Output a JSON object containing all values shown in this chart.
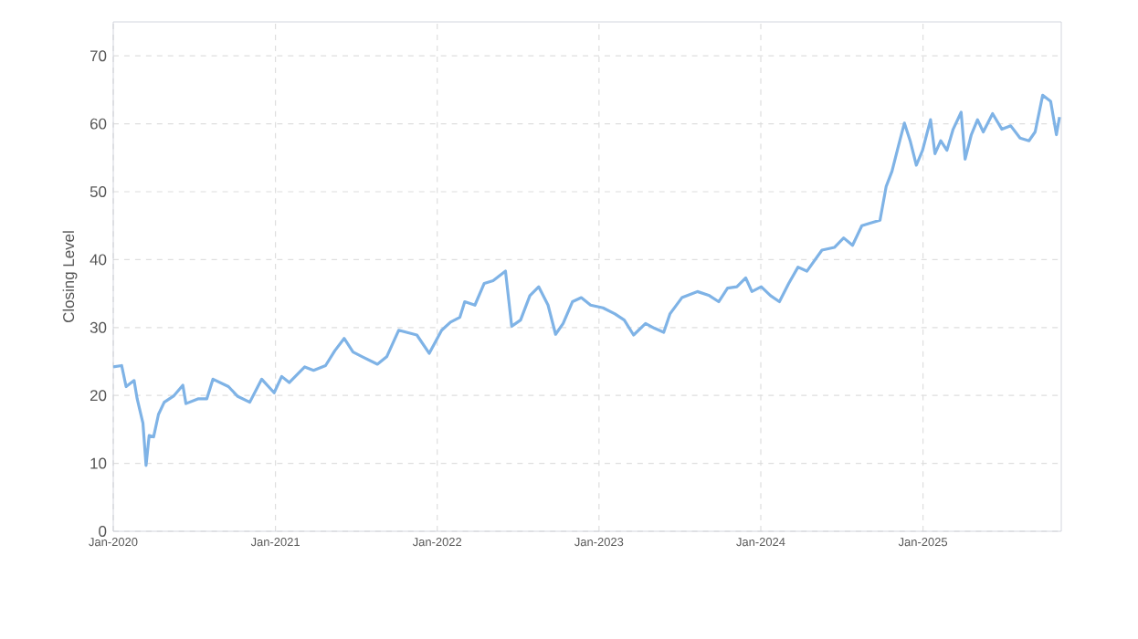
{
  "chart_data": {
    "type": "line",
    "ylabel": "Closing Level",
    "grid": true,
    "xlim": [
      "2020-01-01",
      "2025-11-09"
    ],
    "ylim": [
      0,
      75
    ],
    "xticks": [
      {
        "value": "2020-01-01",
        "label": "Jan-2020"
      },
      {
        "value": "2021-01-01",
        "label": "Jan-2021"
      },
      {
        "value": "2022-01-01",
        "label": "Jan-2022"
      },
      {
        "value": "2023-01-01",
        "label": "Jan-2023"
      },
      {
        "value": "2024-01-01",
        "label": "Jan-2024"
      },
      {
        "value": "2025-01-01",
        "label": "Jan-2025"
      }
    ],
    "yticks": [
      0,
      10,
      20,
      30,
      40,
      50,
      60,
      70
    ],
    "series": [
      {
        "color": "#7fb3e6",
        "x": [
          "2020-01-01",
          "2020-01-20",
          "2020-01-30",
          "2020-02-17",
          "2020-02-24",
          "2020-03-08",
          "2020-03-15",
          "2020-03-22",
          "2020-04-01",
          "2020-04-12",
          "2020-04-25",
          "2020-05-16",
          "2020-06-06",
          "2020-06-13",
          "2020-07-10",
          "2020-07-30",
          "2020-08-13",
          "2020-09-17",
          "2020-10-07",
          "2020-11-04",
          "2020-12-01",
          "2020-12-29",
          "2021-01-15",
          "2021-02-01",
          "2021-03-08",
          "2021-03-28",
          "2021-04-24",
          "2021-05-15",
          "2021-06-05",
          "2021-06-25",
          "2021-07-16",
          "2021-08-19",
          "2021-09-09",
          "2021-10-06",
          "2021-11-16",
          "2021-12-14",
          "2022-01-11",
          "2022-01-31",
          "2022-02-21",
          "2022-03-04",
          "2022-03-27",
          "2022-04-17",
          "2022-05-07",
          "2022-06-04",
          "2022-06-18",
          "2022-07-08",
          "2022-07-29",
          "2022-08-18",
          "2022-09-08",
          "2022-09-25",
          "2022-10-12",
          "2022-11-02",
          "2022-11-22",
          "2022-12-13",
          "2023-01-10",
          "2023-02-06",
          "2023-02-27",
          "2023-03-20",
          "2023-04-16",
          "2023-05-06",
          "2023-05-27",
          "2023-06-10",
          "2023-07-07",
          "2023-08-11",
          "2023-09-07",
          "2023-09-28",
          "2023-10-18",
          "2023-11-08",
          "2023-11-28",
          "2023-12-12",
          "2024-01-02",
          "2024-01-23",
          "2024-02-12",
          "2024-03-04",
          "2024-03-25",
          "2024-04-14",
          "2024-05-18",
          "2024-06-15",
          "2024-07-06",
          "2024-07-26",
          "2024-08-16",
          "2024-09-05",
          "2024-09-26",
          "2024-10-10",
          "2024-10-23",
          "2024-11-06",
          "2024-11-20",
          "2024-12-03",
          "2024-12-17",
          "2024-12-31",
          "2025-01-18",
          "2025-01-28",
          "2025-02-10",
          "2025-02-24",
          "2025-03-10",
          "2025-03-28",
          "2025-04-06",
          "2025-04-20",
          "2025-05-04",
          "2025-05-17",
          "2025-06-07",
          "2025-06-28",
          "2025-07-18",
          "2025-08-08",
          "2025-08-28",
          "2025-09-11",
          "2025-09-28",
          "2025-10-16",
          "2025-10-29",
          "2025-11-05"
        ],
        "values": [
          24.2,
          24.4,
          21.3,
          22.2,
          19.5,
          15.9,
          9.7,
          14.1,
          13.9,
          17.2,
          19.0,
          19.9,
          21.5,
          18.8,
          19.5,
          19.5,
          22.4,
          21.3,
          19.9,
          19.0,
          22.4,
          20.4,
          22.8,
          21.9,
          24.2,
          23.7,
          24.4,
          26.6,
          28.4,
          26.4,
          25.7,
          24.6,
          25.7,
          29.6,
          28.9,
          26.2,
          29.6,
          30.8,
          31.5,
          33.8,
          33.3,
          36.5,
          36.9,
          38.3,
          30.2,
          31.1,
          34.7,
          36.0,
          33.3,
          29.0,
          30.6,
          33.8,
          34.4,
          33.3,
          32.9,
          32.0,
          31.1,
          28.9,
          30.6,
          29.9,
          29.3,
          32.0,
          34.4,
          35.3,
          34.7,
          33.8,
          35.8,
          36.0,
          37.3,
          35.3,
          36.0,
          34.7,
          33.8,
          36.5,
          38.9,
          38.3,
          41.4,
          41.8,
          43.2,
          42.1,
          45.0,
          45.4,
          45.8,
          50.8,
          53.0,
          56.6,
          60.1,
          57.5,
          53.9,
          56.1,
          60.6,
          55.6,
          57.5,
          56.1,
          59.2,
          61.7,
          54.8,
          58.4,
          60.6,
          58.8,
          61.5,
          59.2,
          59.7,
          57.9,
          57.5,
          58.8,
          64.2,
          63.3,
          58.4,
          61.0
        ]
      }
    ]
  }
}
